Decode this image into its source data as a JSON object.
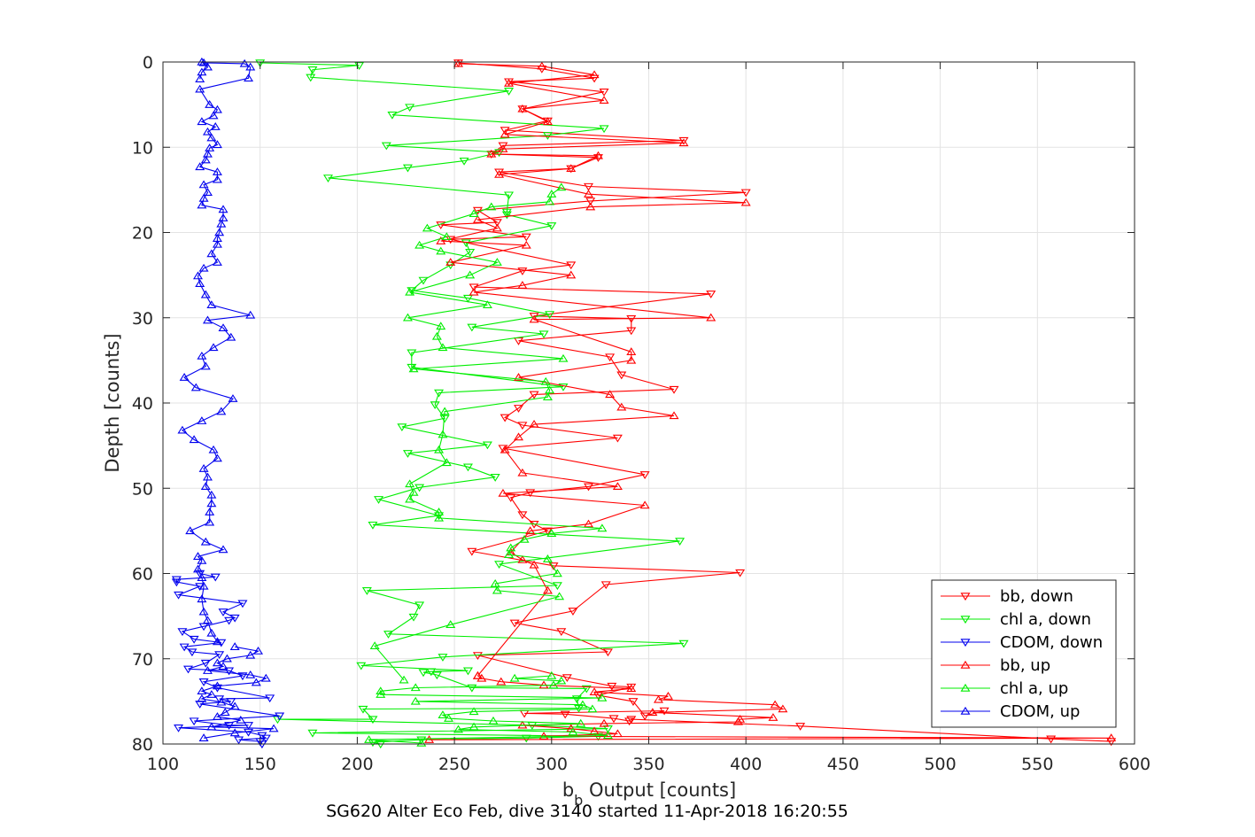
{
  "chart_data": {
    "type": "line",
    "xlabel_main": "b",
    "xlabel_sub": "b",
    "xlabel_rest": " Output [counts]",
    "ylabel": "Depth [counts]",
    "caption": "SG620 Alter Eco Feb, dive 3140 started 11-Apr-2018 16:20:55",
    "xlim": [
      100,
      600
    ],
    "ylim": [
      0,
      80
    ],
    "y_reversed": true,
    "grid": true,
    "xticks": [
      "100",
      "150",
      "200",
      "250",
      "300",
      "350",
      "400",
      "450",
      "500",
      "550",
      "600"
    ],
    "yticks": [
      "0",
      "10",
      "20",
      "30",
      "40",
      "50",
      "60",
      "70",
      "80"
    ],
    "legend_position": "bottom-right",
    "colors": {
      "bb": "#ff0000",
      "chl": "#00ee00",
      "cdom": "#0000ee"
    },
    "series": [
      {
        "name": "bb, down",
        "color": "#ff0000",
        "marker": "triangle-down",
        "x": [
          588,
          557,
          428,
          341,
          340,
          332,
          307,
          286,
          358,
          348,
          342,
          324,
          341,
          331,
          308,
          262,
          329,
          305,
          281,
          311,
          328,
          397,
          301,
          259,
          298,
          291,
          285,
          279,
          289,
          319,
          348,
          275,
          334,
          285,
          276,
          283,
          291,
          363,
          336,
          330,
          283,
          341,
          341,
          291,
          382,
          260,
          285,
          310,
          248,
          287,
          243,
          272,
          262,
          320,
          400,
          319,
          273,
          310,
          324,
          269,
          275,
          368,
          276,
          298,
          285,
          327,
          278,
          322,
          295,
          252
        ],
        "y": [
          79.7,
          79.4,
          77.9,
          77.1,
          77.3,
          77.0,
          76.5,
          76.4,
          76.1,
          76.7,
          75.0,
          74.3,
          73.3,
          73.2,
          72.2,
          69.6,
          69.2,
          66.8,
          65.8,
          64.4,
          61.3,
          59.9,
          59.1,
          57.4,
          55.0,
          54.2,
          53.1,
          51.1,
          50.5,
          49.8,
          48.4,
          45.3,
          44.1,
          42.6,
          41.7,
          40.6,
          39.0,
          38.4,
          36.7,
          34.6,
          32.7,
          31.5,
          30.1,
          29.8,
          27.2,
          26.4,
          24.5,
          23.8,
          20.8,
          20.5,
          19.1,
          18.8,
          17.4,
          16.3,
          15.3,
          14.6,
          12.9,
          12.5,
          11.2,
          10.8,
          9.8,
          9.2,
          8.0,
          6.9,
          5.5,
          3.5,
          2.3,
          1.9,
          0.8,
          0.1
        ]
      },
      {
        "name": "chl a, down",
        "color": "#00ee00",
        "marker": "triangle-down",
        "x": [
          212,
          208,
          233,
          287,
          324,
          177,
          329,
          290,
          159,
          208,
          203,
          314,
          313,
          318,
          259,
          241,
          234,
          238,
          257,
          202,
          244,
          368,
          216,
          229,
          232,
          205,
          303,
          273,
          366,
          208,
          242,
          211,
          232,
          271,
          257,
          226,
          267,
          223,
          245,
          240,
          242,
          306,
          228,
          228,
          296,
          259,
          299,
          257,
          228,
          234,
          248,
          258,
          256,
          300,
          277,
          277,
          278,
          185,
          226,
          255,
          273,
          215,
          298,
          327,
          218,
          227,
          278,
          176,
          177,
          201,
          150
        ],
        "y": [
          80.0,
          79.8,
          79.5,
          79.3,
          79.1,
          78.7,
          78.2,
          77.8,
          77.1,
          77.1,
          75.9,
          75.8,
          74.7,
          73.5,
          73.4,
          71.9,
          71.6,
          71.5,
          71.4,
          70.8,
          69.8,
          68.2,
          67.1,
          65.1,
          63.7,
          62.0,
          61.4,
          58.9,
          56.2,
          54.3,
          53.2,
          51.3,
          49.9,
          48.7,
          47.5,
          45.9,
          44.9,
          42.8,
          41.8,
          40.2,
          38.8,
          38.1,
          35.8,
          34.1,
          31.9,
          31.1,
          29.6,
          27.7,
          26.8,
          25.6,
          23.8,
          22.3,
          21.2,
          19.2,
          17.9,
          17.6,
          15.6,
          13.6,
          12.4,
          11.6,
          10.6,
          9.8,
          8.6,
          7.8,
          6.2,
          5.3,
          3.4,
          1.8,
          0.9,
          0.4,
          0.1
        ]
      },
      {
        "name": "CDOM, down",
        "color": "#0000ee",
        "marker": "triangle-down",
        "x": [
          151,
          150,
          139,
          153,
          151,
          144,
          108,
          144,
          134,
          116,
          160,
          119,
          135,
          129,
          155,
          128,
          121,
          141,
          134,
          113,
          122,
          129,
          115,
          111,
          130,
          116,
          110,
          121,
          134,
          137,
          131,
          141,
          108,
          119,
          107,
          107,
          127,
          119
        ],
        "y": [
          80.0,
          79.7,
          79.5,
          79.3,
          79.0,
          78.6,
          78.1,
          77.8,
          77.8,
          77.3,
          76.7,
          75.3,
          75.0,
          74.7,
          74.6,
          73.4,
          72.7,
          72.0,
          71.4,
          71.2,
          70.5,
          69.5,
          69.2,
          68.6,
          68.1,
          67.7,
          66.8,
          66.2,
          65.5,
          65.2,
          64.5,
          63.5,
          62.5,
          61.5,
          61.0,
          60.7,
          60.4,
          60.0
        ]
      },
      {
        "name": "bb, up",
        "color": "#ff0000",
        "marker": "triangle-up",
        "x": [
          237,
          588,
          296,
          334,
          322,
          310,
          285,
          327,
          396,
          397,
          414,
          352,
          419,
          415,
          355,
          360,
          322,
          341,
          296,
          274,
          264,
          262
        ],
        "y": [
          79.5,
          79.3,
          79.1,
          78.8,
          78.5,
          78.2,
          77.8,
          77.6,
          77.4,
          77.1,
          76.9,
          76.3,
          75.9,
          75.4,
          74.8,
          74.4,
          73.9,
          73.5,
          73.1,
          72.7,
          72.3,
          72.0
        ],
        "x2": [
          262,
          298,
          291,
          285,
          279,
          289,
          319,
          348,
          275,
          334,
          285,
          276,
          283,
          291,
          363,
          336,
          330,
          283,
          341,
          341,
          291,
          382,
          260,
          285,
          310,
          248,
          287,
          243,
          272,
          262,
          320,
          400,
          319,
          273,
          310,
          324,
          269,
          275,
          368,
          276,
          298,
          285,
          327,
          278,
          322,
          295,
          252
        ],
        "y2": [
          72.0,
          62.0,
          59.0,
          58.4,
          57.5,
          55.0,
          54.2,
          52.0,
          50.6,
          49.8,
          48.2,
          45.5,
          44.0,
          42.5,
          41.5,
          40.5,
          39.0,
          37.0,
          35.0,
          34.0,
          30.2,
          30.0,
          27.0,
          26.2,
          25.0,
          23.5,
          21.5,
          21.0,
          19.5,
          18.5,
          17.0,
          16.5,
          15.5,
          13.2,
          12.5,
          11.0,
          10.8,
          10.2,
          9.5,
          8.5,
          7.0,
          5.5,
          4.5,
          2.5,
          1.5,
          0.5,
          0.2
        ]
      },
      {
        "name": "chl a, up",
        "color": "#00ee00",
        "marker": "triangle-up",
        "x": [
          233,
          206,
          329,
          311,
          252,
          260,
          315,
          270,
          247,
          244,
          260,
          321,
          316,
          230,
          326,
          212,
          212,
          230,
          301,
          305,
          281,
          300
        ],
        "y": [
          79.9,
          79.5,
          79.0,
          78.6,
          78.3,
          78.0,
          77.6,
          77.3,
          77.0,
          76.6,
          76.2,
          75.9,
          75.4,
          75.0,
          74.6,
          74.2,
          73.8,
          73.4,
          73.1,
          72.6,
          72.3,
          72.0
        ],
        "x2": [
          224,
          209,
          248,
          304,
          272,
          271,
          303,
          298,
          278,
          279,
          286,
          300,
          326,
          242,
          242,
          227,
          229,
          227,
          246,
          242,
          244,
          245,
          298,
          299,
          297,
          229,
          306,
          244,
          241,
          243,
          226,
          267,
          227,
          258,
          272,
          243,
          232,
          246,
          236,
          260,
          269,
          299,
          300,
          305
        ],
        "y2": [
          72.5,
          68.5,
          66.0,
          62.7,
          62.0,
          61.2,
          60.0,
          58.3,
          57.8,
          57.0,
          56.0,
          55.3,
          54.7,
          53.5,
          52.8,
          51.3,
          50.5,
          49.5,
          47.0,
          45.5,
          43.7,
          41.0,
          39.3,
          38.5,
          37.5,
          36.0,
          34.8,
          33.5,
          32.2,
          31.0,
          30.0,
          28.5,
          27.0,
          25.0,
          23.5,
          22.2,
          21.5,
          20.5,
          19.5,
          17.8,
          17.0,
          16.4,
          15.5,
          14.7
        ]
      },
      {
        "name": "CDOM, up",
        "color": "#0000ee",
        "marker": "triangle-up",
        "x": [
          121,
          137,
          157,
          125,
          140,
          128,
          132,
          137,
          130,
          120,
          125,
          120,
          128,
          148,
          153,
          145,
          123,
          131,
          128,
          133,
          145,
          149,
          137
        ],
        "y": [
          79.3,
          78.7,
          78.2,
          78.0,
          77.2,
          76.8,
          76.3,
          75.6,
          75.1,
          74.7,
          74.2,
          73.8,
          73.2,
          72.8,
          72.3,
          71.9,
          71.4,
          70.9,
          70.5,
          70.0,
          69.6,
          69.1,
          68.6
        ],
        "x2": [
          128,
          125,
          123,
          121,
          120,
          121,
          120,
          118,
          120,
          118,
          131,
          122,
          114,
          124,
          124,
          125,
          125,
          122,
          123,
          121,
          128,
          126,
          116,
          110,
          120,
          130,
          136,
          117,
          111,
          122,
          120,
          126,
          135,
          131,
          123,
          145,
          125,
          122,
          119,
          118,
          121,
          128,
          125,
          128,
          128,
          129,
          130,
          131,
          131,
          120,
          121,
          123,
          121,
          128,
          128,
          119,
          122,
          123,
          124,
          128,
          125,
          123,
          127,
          120,
          126,
          128,
          124,
          119,
          144,
          145,
          142,
          121,
          120,
          123,
          120,
          119
        ],
        "y2": [
          68.0,
          67.0,
          65.5,
          64.5,
          63.0,
          61.5,
          60.5,
          59.5,
          58.5,
          58.0,
          57.2,
          56.3,
          55.0,
          54.0,
          52.8,
          51.8,
          50.8,
          49.8,
          48.7,
          47.7,
          46.5,
          45.5,
          44.3,
          43.2,
          42.1,
          41.0,
          39.5,
          38.2,
          37.0,
          35.7,
          34.5,
          33.5,
          32.3,
          31.2,
          30.3,
          29.7,
          28.5,
          27.3,
          26.0,
          25.1,
          24.2,
          23.5,
          22.5,
          21.4,
          20.7,
          20.0,
          19.0,
          18.3,
          17.3,
          16.8,
          16.0,
          15.3,
          14.4,
          13.8,
          12.9,
          12.3,
          11.5,
          10.8,
          10.1,
          9.7,
          8.9,
          8.2,
          7.6,
          7.0,
          6.3,
          5.6,
          5.0,
          3.2,
          1.9,
          0.6,
          0.2,
          0.1,
          0.0,
          0.6,
          1.2,
          2.0
        ]
      }
    ]
  }
}
